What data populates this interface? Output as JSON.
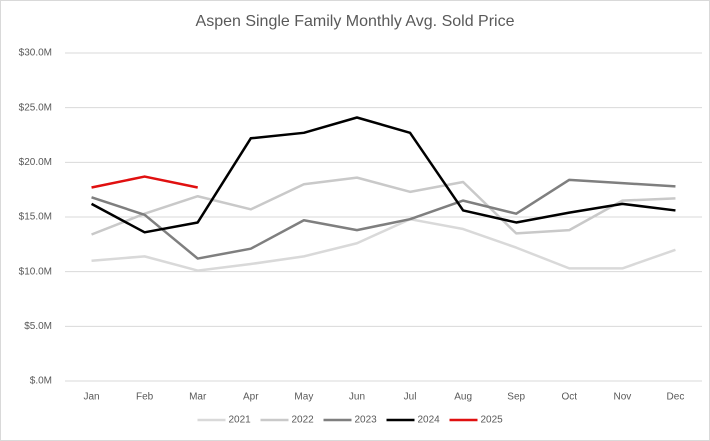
{
  "chart_data": {
    "type": "line",
    "title": "Aspen Single Family Monthly Avg. Sold Price",
    "categories": [
      "Jan",
      "Feb",
      "Mar",
      "Apr",
      "May",
      "Jun",
      "Jul",
      "Aug",
      "Sep",
      "Oct",
      "Nov",
      "Dec"
    ],
    "series": [
      {
        "name": "2021",
        "color": "#d9d9d9",
        "values": [
          11.0,
          11.4,
          10.1,
          10.7,
          11.4,
          12.6,
          14.8,
          13.9,
          12.2,
          10.3,
          10.3,
          12.0
        ]
      },
      {
        "name": "2022",
        "color": "#c9c9c9",
        "values": [
          13.4,
          15.3,
          16.9,
          15.7,
          18.0,
          18.6,
          17.3,
          18.2,
          13.5,
          13.8,
          16.5,
          16.7
        ]
      },
      {
        "name": "2023",
        "color": "#7f7f7f",
        "values": [
          16.8,
          15.2,
          11.2,
          12.1,
          14.7,
          13.8,
          14.8,
          16.5,
          15.3,
          18.4,
          18.1,
          17.8
        ]
      },
      {
        "name": "2024",
        "color": "#000000",
        "values": [
          16.2,
          13.6,
          14.5,
          22.2,
          22.7,
          24.1,
          22.7,
          15.6,
          14.5,
          15.4,
          16.2,
          15.6
        ]
      },
      {
        "name": "2025",
        "color": "#e01010",
        "values": [
          17.7,
          18.7,
          17.7,
          null,
          null,
          null,
          null,
          null,
          null,
          null,
          null,
          null
        ]
      }
    ],
    "ylim": [
      0,
      30
    ],
    "yticks": [
      {
        "value": 0,
        "label": "$.0M"
      },
      {
        "value": 5,
        "label": "$5.0M"
      },
      {
        "value": 10,
        "label": "$10.0M"
      },
      {
        "value": 15,
        "label": "$15.0M"
      },
      {
        "value": 20,
        "label": "$20.0M"
      },
      {
        "value": 25,
        "label": "$25.0M"
      },
      {
        "value": 30,
        "label": "$30.0M"
      }
    ],
    "grid": true,
    "legend": "bottom"
  }
}
